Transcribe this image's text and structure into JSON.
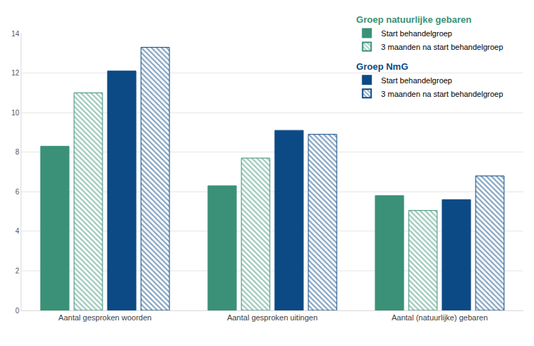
{
  "chart_data": {
    "type": "bar",
    "categories": [
      "Aantal gesproken woorden",
      "Aantal gesproken uitingen",
      "Aantal (natuurlijke) gebaren"
    ],
    "series": [
      {
        "name": "Start behandelgroep",
        "group": "Groep natuurlijke gebaren",
        "color": "#3a9177",
        "marker": "solid",
        "values": [
          8.3,
          6.3,
          5.8
        ]
      },
      {
        "name": "3 maanden na start behandelgroep",
        "group": "Groep natuurlijke gebaren",
        "color": "#3a9177",
        "marker": "hatched",
        "values": [
          11.0,
          7.7,
          5.05
        ]
      },
      {
        "name": "Start behandelgroep",
        "group": "Groep NmG",
        "color": "#0c4a85",
        "marker": "solid",
        "values": [
          12.1,
          9.1,
          5.6
        ]
      },
      {
        "name": "3 maanden na start behandelgroep",
        "group": "Groep NmG",
        "color": "#0c4a85",
        "marker": "hatched",
        "values": [
          13.3,
          8.9,
          6.8
        ]
      }
    ],
    "ylim": [
      0,
      14
    ],
    "yticks": [
      0,
      2,
      4,
      6,
      8,
      10,
      12,
      14
    ],
    "grid": true,
    "legend": "top right"
  }
}
